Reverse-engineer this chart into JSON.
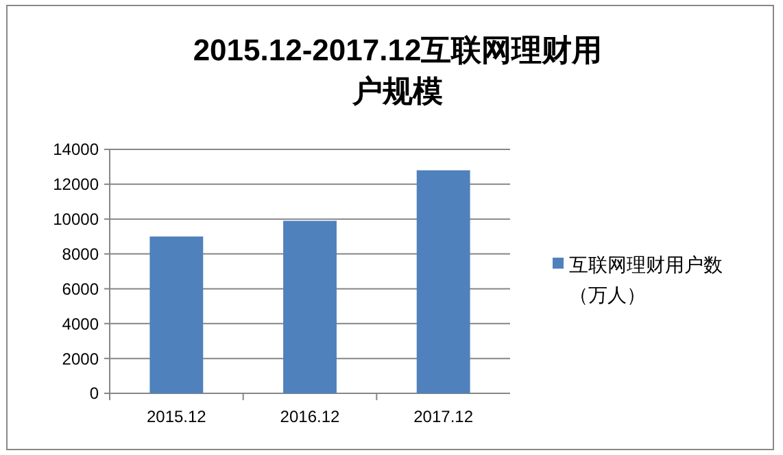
{
  "chart_data": {
    "type": "bar",
    "title": "2015.12-2017.12互联网理财用户规模",
    "categories": [
      "2015.12",
      "2016.12",
      "2017.12"
    ],
    "series": [
      {
        "name": "互联网理财用户数（万人）",
        "color": "#4f81bd",
        "values": [
          9000,
          9900,
          12800
        ]
      }
    ],
    "ylim": [
      0,
      14000
    ],
    "yticks": [
      0,
      2000,
      4000,
      6000,
      8000,
      10000,
      12000,
      14000
    ],
    "grid": "y",
    "legend": "right"
  }
}
